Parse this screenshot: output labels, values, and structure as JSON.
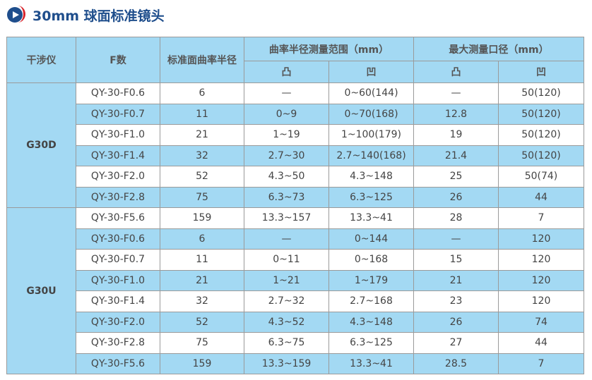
{
  "title": "30mm 球面标准镜头",
  "headers": {
    "interferometer": "干涉仪",
    "f_number": "F数",
    "radius": "标准面曲率半径",
    "range": "曲率半径测量范围（mm）",
    "aperture": "最大测量口径（mm）",
    "convex": "凸",
    "concave": "凹"
  },
  "colors": {
    "header_bg": "#a3d9f3",
    "title": "#1f4e8c",
    "logo_accent": "#d8232a"
  },
  "groups": [
    {
      "name": "G30D",
      "rows": [
        [
          "QY-30-F0.6",
          "6",
          "—",
          "0~60(144)",
          "—",
          "50(120)"
        ],
        [
          "QY-30-F0.7",
          "11",
          "0~9",
          "0~70(168)",
          "12.8",
          "50(120)"
        ],
        [
          "QY-30-F1.0",
          "21",
          "1~19",
          "1~100(179)",
          "19",
          "50(120)"
        ],
        [
          "QY-30-F1.4",
          "32",
          "2.7~30",
          "2.7~140(168)",
          "21.4",
          "50(120)"
        ],
        [
          "QY-30-F2.0",
          "52",
          "4.3~50",
          "4.3~148",
          "25",
          "50(74)"
        ],
        [
          "QY-30-F2.8",
          "75",
          "6.3~73",
          "6.3~125",
          "26",
          "44"
        ]
      ]
    },
    {
      "name": "G30U",
      "rows": [
        [
          "QY-30-F5.6",
          "159",
          "13.3~157",
          "13.3~41",
          "28",
          "7"
        ],
        [
          "QY-30-F0.6",
          "6",
          "—",
          "0~144",
          "—",
          "120"
        ],
        [
          "QY-30-F0.7",
          "11",
          "0~11",
          "0~168",
          "15",
          "120"
        ],
        [
          "QY-30-F1.0",
          "21",
          "1~21",
          "1~179",
          "21",
          "120"
        ],
        [
          "QY-30-F1.4",
          "32",
          "2.7~32",
          "2.7~168",
          "23",
          "120"
        ],
        [
          "QY-30-F2.0",
          "52",
          "4.3~52",
          "4.3~148",
          "26",
          "74"
        ],
        [
          "QY-30-F2.8",
          "75",
          "6.3~75",
          "6.3~125",
          "27",
          "44"
        ],
        [
          "QY-30-F5.6",
          "159",
          "13.3~159",
          "13.3~41",
          "28.5",
          "7"
        ]
      ]
    }
  ]
}
